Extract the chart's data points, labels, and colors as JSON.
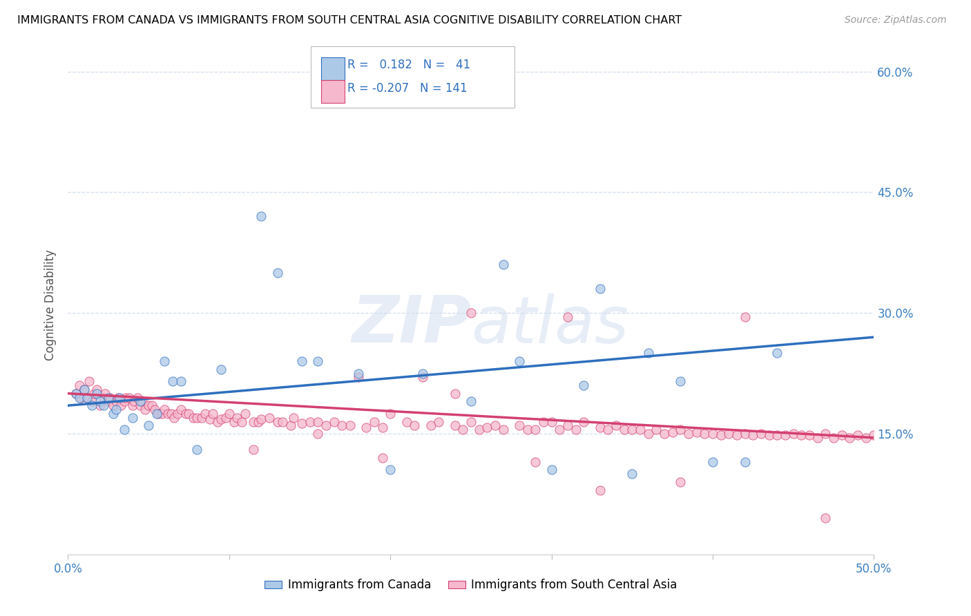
{
  "title": "IMMIGRANTS FROM CANADA VS IMMIGRANTS FROM SOUTH CENTRAL ASIA COGNITIVE DISABILITY CORRELATION CHART",
  "source": "Source: ZipAtlas.com",
  "ylabel": "Cognitive Disability",
  "xlim": [
    0.0,
    0.5
  ],
  "ylim": [
    0.0,
    0.62
  ],
  "legend_R_canada": "0.182",
  "legend_N_canada": "41",
  "legend_R_sca": "-0.207",
  "legend_N_sca": "141",
  "canada_color": "#adc9e8",
  "sca_color": "#f5b8cc",
  "canada_line_color": "#2e6fbe",
  "sca_line_color": "#d44070",
  "canada_trend_start": 0.185,
  "canada_trend_end": 0.27,
  "sca_trend_start": 0.2,
  "sca_trend_end": 0.145,
  "canada_scatter_x": [
    0.005,
    0.007,
    0.01,
    0.012,
    0.015,
    0.018,
    0.02,
    0.022,
    0.025,
    0.028,
    0.03,
    0.032,
    0.035,
    0.04,
    0.045,
    0.05,
    0.055,
    0.06,
    0.065,
    0.07,
    0.08,
    0.095,
    0.12,
    0.13,
    0.145,
    0.155,
    0.18,
    0.2,
    0.22,
    0.25,
    0.27,
    0.3,
    0.33,
    0.35,
    0.38,
    0.4,
    0.42,
    0.44,
    0.28,
    0.32,
    0.36
  ],
  "canada_scatter_y": [
    0.2,
    0.195,
    0.205,
    0.195,
    0.185,
    0.2,
    0.19,
    0.185,
    0.195,
    0.175,
    0.18,
    0.195,
    0.155,
    0.17,
    0.19,
    0.16,
    0.175,
    0.24,
    0.215,
    0.215,
    0.13,
    0.23,
    0.42,
    0.35,
    0.24,
    0.24,
    0.225,
    0.105,
    0.225,
    0.19,
    0.36,
    0.105,
    0.33,
    0.1,
    0.215,
    0.115,
    0.115,
    0.25,
    0.24,
    0.21,
    0.25
  ],
  "sca_scatter_x": [
    0.005,
    0.007,
    0.008,
    0.01,
    0.012,
    0.013,
    0.015,
    0.016,
    0.018,
    0.02,
    0.022,
    0.023,
    0.025,
    0.026,
    0.028,
    0.03,
    0.031,
    0.033,
    0.035,
    0.036,
    0.038,
    0.04,
    0.041,
    0.043,
    0.045,
    0.046,
    0.048,
    0.05,
    0.052,
    0.054,
    0.056,
    0.058,
    0.06,
    0.062,
    0.064,
    0.066,
    0.068,
    0.07,
    0.073,
    0.075,
    0.078,
    0.08,
    0.083,
    0.085,
    0.088,
    0.09,
    0.093,
    0.095,
    0.098,
    0.1,
    0.103,
    0.105,
    0.108,
    0.11,
    0.115,
    0.118,
    0.12,
    0.125,
    0.13,
    0.133,
    0.138,
    0.14,
    0.145,
    0.15,
    0.155,
    0.16,
    0.165,
    0.17,
    0.175,
    0.18,
    0.185,
    0.19,
    0.195,
    0.2,
    0.21,
    0.215,
    0.22,
    0.225,
    0.23,
    0.24,
    0.245,
    0.25,
    0.255,
    0.26,
    0.265,
    0.27,
    0.28,
    0.285,
    0.29,
    0.295,
    0.3,
    0.305,
    0.31,
    0.315,
    0.32,
    0.33,
    0.335,
    0.34,
    0.345,
    0.35,
    0.355,
    0.36,
    0.365,
    0.37,
    0.375,
    0.38,
    0.385,
    0.39,
    0.395,
    0.4,
    0.405,
    0.41,
    0.415,
    0.42,
    0.425,
    0.43,
    0.435,
    0.44,
    0.445,
    0.45,
    0.455,
    0.46,
    0.465,
    0.47,
    0.475,
    0.48,
    0.485,
    0.49,
    0.495,
    0.5,
    0.25,
    0.31,
    0.42,
    0.47,
    0.38,
    0.33,
    0.29,
    0.24,
    0.195,
    0.155,
    0.115
  ],
  "sca_scatter_y": [
    0.2,
    0.21,
    0.195,
    0.205,
    0.195,
    0.215,
    0.19,
    0.2,
    0.205,
    0.185,
    0.195,
    0.2,
    0.19,
    0.195,
    0.185,
    0.19,
    0.195,
    0.185,
    0.19,
    0.195,
    0.195,
    0.185,
    0.19,
    0.195,
    0.185,
    0.19,
    0.18,
    0.185,
    0.185,
    0.18,
    0.175,
    0.175,
    0.18,
    0.175,
    0.175,
    0.17,
    0.175,
    0.18,
    0.175,
    0.175,
    0.17,
    0.17,
    0.17,
    0.175,
    0.168,
    0.175,
    0.165,
    0.168,
    0.17,
    0.175,
    0.165,
    0.17,
    0.165,
    0.175,
    0.165,
    0.165,
    0.168,
    0.17,
    0.165,
    0.165,
    0.16,
    0.17,
    0.163,
    0.165,
    0.165,
    0.16,
    0.165,
    0.16,
    0.16,
    0.22,
    0.158,
    0.165,
    0.158,
    0.175,
    0.165,
    0.16,
    0.22,
    0.16,
    0.165,
    0.16,
    0.155,
    0.165,
    0.155,
    0.158,
    0.16,
    0.155,
    0.16,
    0.155,
    0.155,
    0.165,
    0.165,
    0.155,
    0.16,
    0.155,
    0.165,
    0.158,
    0.155,
    0.16,
    0.155,
    0.155,
    0.155,
    0.15,
    0.155,
    0.15,
    0.152,
    0.155,
    0.15,
    0.152,
    0.15,
    0.15,
    0.148,
    0.15,
    0.148,
    0.15,
    0.148,
    0.15,
    0.148,
    0.148,
    0.148,
    0.15,
    0.148,
    0.148,
    0.145,
    0.15,
    0.145,
    0.148,
    0.145,
    0.148,
    0.145,
    0.148,
    0.3,
    0.295,
    0.295,
    0.045,
    0.09,
    0.08,
    0.115,
    0.2,
    0.12,
    0.15,
    0.13
  ]
}
